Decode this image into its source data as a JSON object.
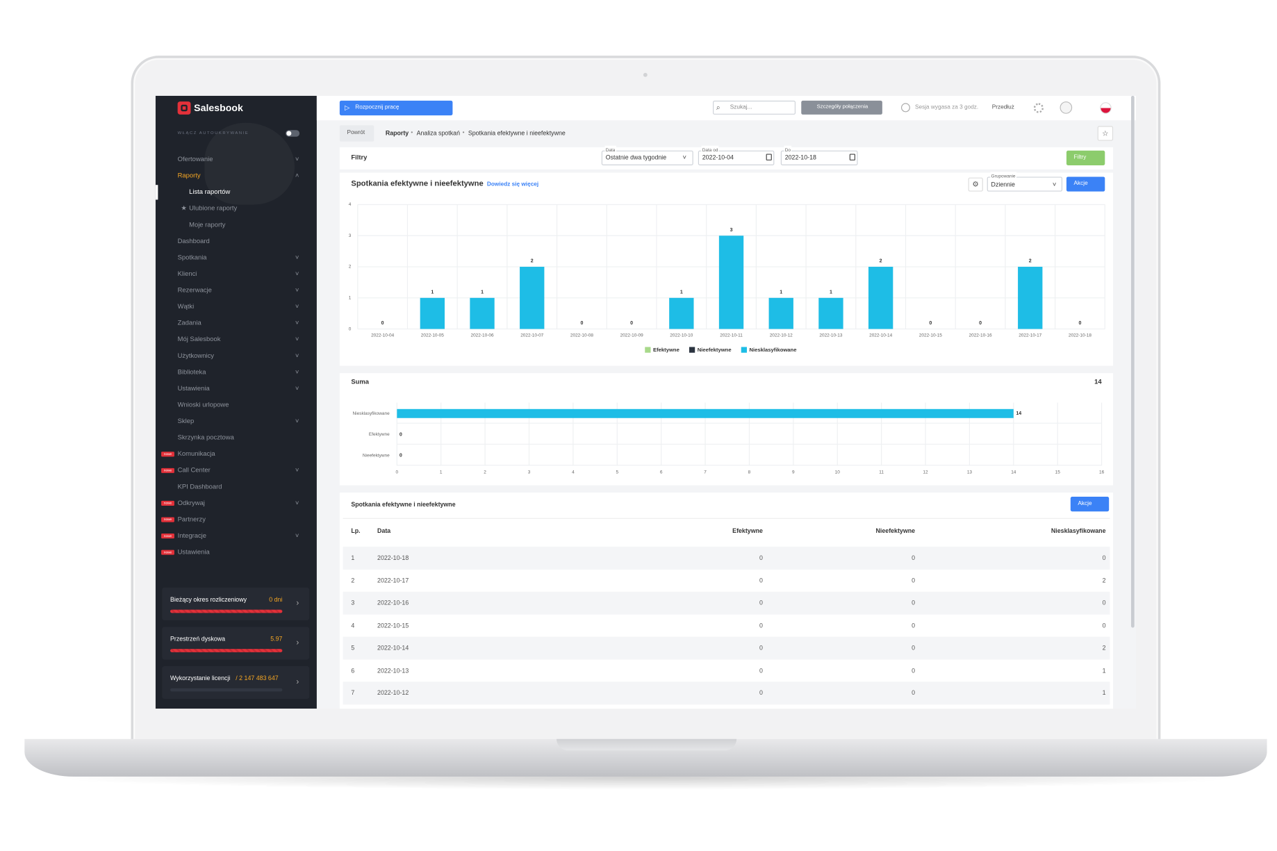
{
  "sidebar": {
    "logo": "Salesbook",
    "autohide": "WŁĄCZ AUTOUKRYWANIE",
    "items": [
      {
        "label": "Ofertowanie",
        "chevron": "down"
      },
      {
        "label": "Raporty",
        "chevron": "up",
        "active": true
      },
      {
        "label": "Lista raportów",
        "sub": true,
        "current": true
      },
      {
        "label": "Ulubione raporty",
        "sub": true,
        "star": true
      },
      {
        "label": "Moje raporty",
        "sub": true
      },
      {
        "label": "Dashboard"
      },
      {
        "label": "Spotkania",
        "chevron": "down"
      },
      {
        "label": "Klienci",
        "chevron": "down"
      },
      {
        "label": "Rezerwacje",
        "chevron": "down"
      },
      {
        "label": "Wątki",
        "chevron": "down"
      },
      {
        "label": "Zadania",
        "chevron": "down"
      },
      {
        "label": "Mój Salesbook",
        "chevron": "down"
      },
      {
        "label": "Użytkownicy",
        "chevron": "down"
      },
      {
        "label": "Biblioteka",
        "chevron": "down"
      },
      {
        "label": "Ustawienia",
        "chevron": "down"
      },
      {
        "label": "Wnioski urlopowe"
      },
      {
        "label": "Sklep",
        "chevron": "down"
      },
      {
        "label": "Skrzynka pocztowa"
      },
      {
        "label": "Komunikacja",
        "badge": "nowe"
      },
      {
        "label": "Call Center",
        "badge": "nowe",
        "chevron": "down"
      },
      {
        "label": "KPI Dashboard"
      },
      {
        "label": "Odkrywaj",
        "badge": "nowe",
        "chevron": "down"
      },
      {
        "label": "Partnerzy",
        "badge": "nowe"
      },
      {
        "label": "Integracje",
        "badge": "nowe",
        "chevron": "down"
      },
      {
        "label": "Ustawienia",
        "badge": "nowe"
      }
    ],
    "cards": [
      {
        "label": "Bieżący okres rozliczeniowy",
        "value": "0 dni"
      },
      {
        "label": "Przestrzeń dyskowa",
        "value": "5.97"
      },
      {
        "label": "Wykorzystanie licencji",
        "value": "/ 2 147 483 647"
      }
    ]
  },
  "header": {
    "start": "Rozpocznij pracę",
    "search": "Szukaj...",
    "connection": "Szczegóły połączenia",
    "session": "Sesja wygasa za 3 godz.",
    "extend": "Przedłuż"
  },
  "breadcrumb": {
    "back": "Powrót",
    "path": [
      "Raporty",
      "Analiza spotkań",
      "Spotkania efektywne i nieefektywne"
    ]
  },
  "filters": {
    "title": "Filtry",
    "date_label": "Data",
    "date_value": "Ostatnie dwa tygodnie",
    "from_label": "Data od",
    "from_value": "2022-10-04",
    "to_label": "Do",
    "to_value": "2022-10-18",
    "button": "Filtry"
  },
  "chart_card": {
    "title": "Spotkania efektywne i nieefektywne",
    "link": "Dowiedz się więcej",
    "grouping_label": "Grupowanie",
    "grouping_value": "Dziennie",
    "actions": "Akcje"
  },
  "chart_data": [
    {
      "type": "bar",
      "stacked": true,
      "categories": [
        "2022-10-04",
        "2022-10-05",
        "2022-10-06",
        "2022-10-07",
        "2022-10-08",
        "2022-10-09",
        "2022-10-10",
        "2022-10-11",
        "2022-10-12",
        "2022-10-13",
        "2022-10-14",
        "2022-10-15",
        "2022-10-16",
        "2022-10-17",
        "2022-10-18"
      ],
      "series": [
        {
          "name": "Efektywne",
          "color": "#a8d98a",
          "values": [
            0,
            0,
            0,
            0,
            0,
            0,
            0,
            0,
            0,
            0,
            0,
            0,
            0,
            0,
            0
          ]
        },
        {
          "name": "Nieefektywne",
          "color": "#2b3440",
          "values": [
            0,
            0,
            0,
            0,
            0,
            0,
            0,
            0,
            0,
            0,
            0,
            0,
            0,
            0,
            0
          ]
        },
        {
          "name": "Niesklasyfikowane",
          "color": "#1ebde6",
          "values": [
            0,
            1,
            1,
            2,
            0,
            0,
            1,
            3,
            1,
            1,
            2,
            0,
            0,
            2,
            0
          ]
        }
      ],
      "ylim": [
        0,
        4
      ],
      "yticks": [
        0,
        1,
        2,
        3,
        4
      ],
      "grid": true,
      "legend": "bottom"
    },
    {
      "type": "bar",
      "orientation": "horizontal",
      "title": "Suma",
      "total": 14,
      "categories": [
        "Niesklasyfikowane",
        "Efektywne",
        "Nieefektywne"
      ],
      "values": [
        14,
        0,
        0
      ],
      "color": "#1ebde6",
      "xlim": [
        0,
        16
      ],
      "xticks": [
        0,
        1,
        2,
        3,
        4,
        5,
        6,
        7,
        8,
        9,
        10,
        11,
        12,
        13,
        14,
        15,
        16
      ],
      "grid": true
    }
  ],
  "table": {
    "title": "Spotkania efektywne i nieefektywne",
    "actions": "Akcje",
    "columns": [
      "Lp.",
      "Data",
      "Efektywne",
      "Nieefektywne",
      "Niesklasyfikowane"
    ],
    "rows": [
      [
        1,
        "2022-10-18",
        0,
        0,
        0
      ],
      [
        2,
        "2022-10-17",
        0,
        0,
        2
      ],
      [
        3,
        "2022-10-16",
        0,
        0,
        0
      ],
      [
        4,
        "2022-10-15",
        0,
        0,
        0
      ],
      [
        5,
        "2022-10-14",
        0,
        0,
        2
      ],
      [
        6,
        "2022-10-13",
        0,
        0,
        1
      ],
      [
        7,
        "2022-10-12",
        0,
        0,
        1
      ]
    ]
  }
}
